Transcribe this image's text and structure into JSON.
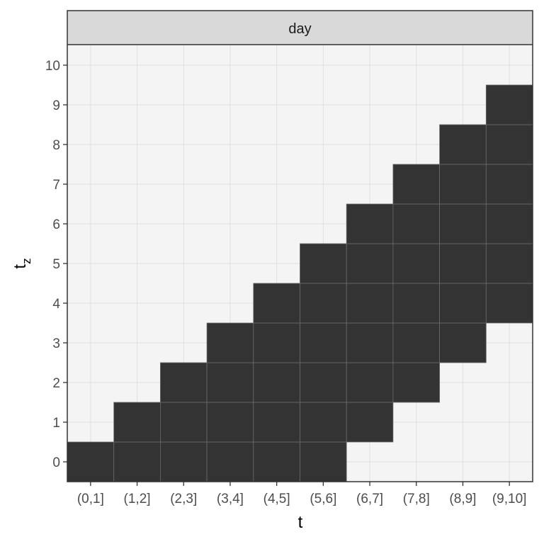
{
  "chart_data": {
    "type": "heatmap",
    "facet": "day",
    "xlabel": "t",
    "ylabel": "t",
    "ylabel_subscript": "z",
    "x_categories": [
      "(0,1]",
      "(1,2]",
      "(2,3]",
      "(3,4]",
      "(4,5]",
      "(5,6]",
      "(6,7]",
      "(7,8]",
      "(8,9]",
      "(9,10]"
    ],
    "y_ticks": [
      "0",
      "1",
      "2",
      "3",
      "4",
      "5",
      "6",
      "7",
      "8",
      "9",
      "10"
    ],
    "colors": {
      "filled": "#333333",
      "empty": "#f4f4f4",
      "grid": "#e0e0e0",
      "strip": "#d9d9d9"
    },
    "filled_ranges": [
      {
        "x": "(0,1]",
        "tz_from": 0,
        "tz_to": 0
      },
      {
        "x": "(1,2]",
        "tz_from": 0,
        "tz_to": 1
      },
      {
        "x": "(2,3]",
        "tz_from": 0,
        "tz_to": 2
      },
      {
        "x": "(3,4]",
        "tz_from": 0,
        "tz_to": 3
      },
      {
        "x": "(4,5]",
        "tz_from": 0,
        "tz_to": 4
      },
      {
        "x": "(5,6]",
        "tz_from": 0,
        "tz_to": 5
      },
      {
        "x": "(6,7]",
        "tz_from": 1,
        "tz_to": 6
      },
      {
        "x": "(7,8]",
        "tz_from": 2,
        "tz_to": 7
      },
      {
        "x": "(8,9]",
        "tz_from": 3,
        "tz_to": 8
      },
      {
        "x": "(9,10]",
        "tz_from": 4,
        "tz_to": 9
      }
    ]
  }
}
